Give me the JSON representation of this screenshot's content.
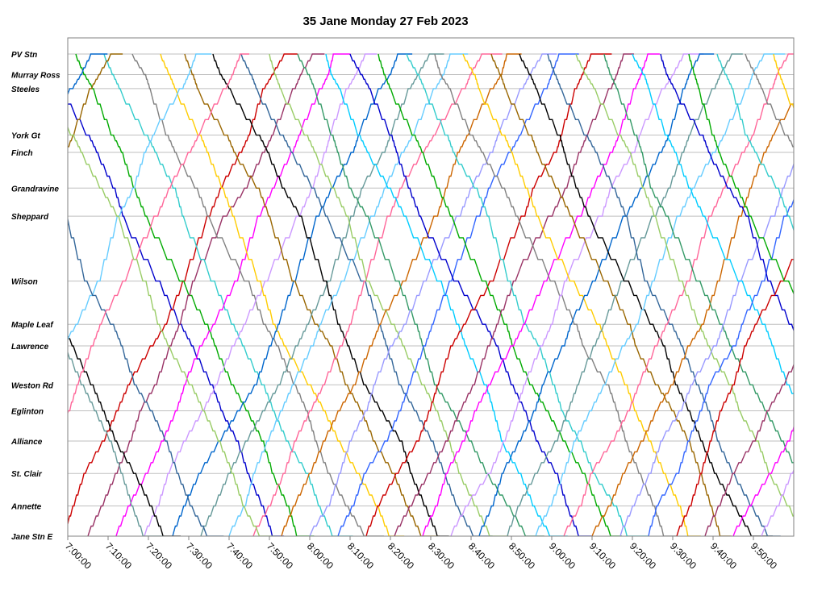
{
  "chart_data": {
    "type": "line",
    "title": "35 Jane Monday 27 Feb 2023",
    "xlabel": "",
    "ylabel": "",
    "x_tick_labels": [
      "7:00:00",
      "7:10:00",
      "7:20:00",
      "7:30:00",
      "7:40:00",
      "7:50:00",
      "8:00:00",
      "8:10:00",
      "8:20:00",
      "8:30:00",
      "8:40:00",
      "8:50:00",
      "9:00:00",
      "9:10:00",
      "9:20:00",
      "9:30:00",
      "9:40:00",
      "9:50:00"
    ],
    "xlim": [
      "7:00:00",
      "10:00:00"
    ],
    "stops": [
      {
        "name": "PV Stn",
        "km": 0.0
      },
      {
        "name": "Murray Ross",
        "km": 0.95
      },
      {
        "name": "Steeles",
        "km": 1.6
      },
      {
        "name": "York Gt",
        "km": 3.75
      },
      {
        "name": "Finch",
        "km": 4.55
      },
      {
        "name": "Grandravine",
        "km": 6.2
      },
      {
        "name": "Sheppard",
        "km": 7.5
      },
      {
        "name": "Wilson",
        "km": 10.5
      },
      {
        "name": "Maple Leaf",
        "km": 12.5
      },
      {
        "name": "Lawrence",
        "km": 13.5
      },
      {
        "name": "Weston Rd",
        "km": 15.3
      },
      {
        "name": "Eglinton",
        "km": 16.5
      },
      {
        "name": "Alliance",
        "km": 17.9
      },
      {
        "name": "St. Clair",
        "km": 19.4
      },
      {
        "name": "Annette",
        "km": 20.9
      },
      {
        "name": "Jane Stn E",
        "km": 22.3
      }
    ],
    "grid": true,
    "legend": "none",
    "series_palette": [
      "#0000cc",
      "#cc0000",
      "#00aa00",
      "#993366",
      "#33cccc",
      "#ff00ff",
      "#808080",
      "#cc99ff",
      "#ffcc00",
      "#0066cc",
      "#996600",
      "#669999",
      "#000000",
      "#66ccff",
      "#336699",
      "#ff6699",
      "#99cc66",
      "#cc6600",
      "#339966",
      "#9999ff",
      "#00ccff",
      "#3366ff"
    ],
    "series": [
      {
        "depart": "6:55:00",
        "dir": "S",
        "trip_min": 56
      },
      {
        "depart": "6:59:00",
        "dir": "N",
        "trip_min": 55
      },
      {
        "depart": "7:02:00",
        "dir": "S",
        "trip_min": 55
      },
      {
        "depart": "7:05:00",
        "dir": "N",
        "trip_min": 56
      },
      {
        "depart": "7:09:00",
        "dir": "S",
        "trip_min": 57
      },
      {
        "depart": "7:12:00",
        "dir": "N",
        "trip_min": 54
      },
      {
        "depart": "7:16:00",
        "dir": "S",
        "trip_min": 58
      },
      {
        "depart": "7:19:00",
        "dir": "N",
        "trip_min": 55
      },
      {
        "depart": "7:23:00",
        "dir": "S",
        "trip_min": 57
      },
      {
        "depart": "7:26:00",
        "dir": "N",
        "trip_min": 56
      },
      {
        "depart": "7:29:00",
        "dir": "S",
        "trip_min": 59
      },
      {
        "depart": "7:33:00",
        "dir": "N",
        "trip_min": 57
      },
      {
        "depart": "7:36:00",
        "dir": "S",
        "trip_min": 56
      },
      {
        "depart": "7:40:00",
        "dir": "N",
        "trip_min": 55
      },
      {
        "depart": "7:43:00",
        "dir": "S",
        "trip_min": 58
      },
      {
        "depart": "7:46:00",
        "dir": "N",
        "trip_min": 57
      },
      {
        "depart": "7:50:00",
        "dir": "S",
        "trip_min": 55
      },
      {
        "depart": "7:53:00",
        "dir": "N",
        "trip_min": 56
      },
      {
        "depart": "7:57:00",
        "dir": "S",
        "trip_min": 57
      },
      {
        "depart": "8:00:00",
        "dir": "N",
        "trip_min": 58
      },
      {
        "depart": "8:04:00",
        "dir": "S",
        "trip_min": 56
      },
      {
        "depart": "8:07:00",
        "dir": "N",
        "trip_min": 55
      },
      {
        "depart": "8:10:00",
        "dir": "S",
        "trip_min": 57
      },
      {
        "depart": "8:14:00",
        "dir": "N",
        "trip_min": 56
      },
      {
        "depart": "8:17:00",
        "dir": "S",
        "trip_min": 58
      },
      {
        "depart": "8:21:00",
        "dir": "N",
        "trip_min": 57
      },
      {
        "depart": "8:24:00",
        "dir": "S",
        "trip_min": 55
      },
      {
        "depart": "8:28:00",
        "dir": "N",
        "trip_min": 56
      },
      {
        "depart": "8:31:00",
        "dir": "S",
        "trip_min": 57
      },
      {
        "depart": "8:35:00",
        "dir": "N",
        "trip_min": 58
      },
      {
        "depart": "8:38:00",
        "dir": "S",
        "trip_min": 56
      },
      {
        "depart": "8:42:00",
        "dir": "N",
        "trip_min": 55
      },
      {
        "depart": "8:45:00",
        "dir": "S",
        "trip_min": 57
      },
      {
        "depart": "8:49:00",
        "dir": "N",
        "trip_min": 56
      },
      {
        "depart": "8:52:00",
        "dir": "S",
        "trip_min": 58
      },
      {
        "depart": "8:56:00",
        "dir": "N",
        "trip_min": 57
      },
      {
        "depart": "8:59:00",
        "dir": "S",
        "trip_min": 55
      },
      {
        "depart": "9:03:00",
        "dir": "N",
        "trip_min": 56
      },
      {
        "depart": "9:06:00",
        "dir": "S",
        "trip_min": 57
      },
      {
        "depart": "9:10:00",
        "dir": "N",
        "trip_min": 58
      },
      {
        "depart": "9:13:00",
        "dir": "S",
        "trip_min": 56
      },
      {
        "depart": "9:17:00",
        "dir": "N",
        "trip_min": 55
      },
      {
        "depart": "9:20:00",
        "dir": "S",
        "trip_min": 57
      },
      {
        "depart": "9:24:00",
        "dir": "N",
        "trip_min": 56
      },
      {
        "depart": "9:27:00",
        "dir": "S",
        "trip_min": 58
      },
      {
        "depart": "9:31:00",
        "dir": "N",
        "trip_min": 57
      },
      {
        "depart": "9:34:00",
        "dir": "S",
        "trip_min": 55
      },
      {
        "depart": "9:38:00",
        "dir": "N",
        "trip_min": 56
      },
      {
        "depart": "9:41:00",
        "dir": "S",
        "trip_min": 57
      },
      {
        "depart": "9:45:00",
        "dir": "N",
        "trip_min": 58
      },
      {
        "depart": "9:48:00",
        "dir": "S",
        "trip_min": 56
      },
      {
        "depart": "9:52:00",
        "dir": "N",
        "trip_min": 55
      },
      {
        "depart": "9:55:00",
        "dir": "S",
        "trip_min": 57
      },
      {
        "depart": "6:10:00",
        "dir": "N",
        "trip_min": 56
      },
      {
        "depart": "6:16:00",
        "dir": "N",
        "trip_min": 55
      },
      {
        "depart": "6:22:00",
        "dir": "S",
        "trip_min": 57
      },
      {
        "depart": "6:28:00",
        "dir": "S",
        "trip_min": 56
      },
      {
        "depart": "6:34:00",
        "dir": "N",
        "trip_min": 58
      },
      {
        "depart": "6:40:00",
        "dir": "S",
        "trip_min": 55
      },
      {
        "depart": "6:46:00",
        "dir": "N",
        "trip_min": 57
      },
      {
        "depart": "6:52:00",
        "dir": "S",
        "trip_min": 56
      }
    ]
  }
}
